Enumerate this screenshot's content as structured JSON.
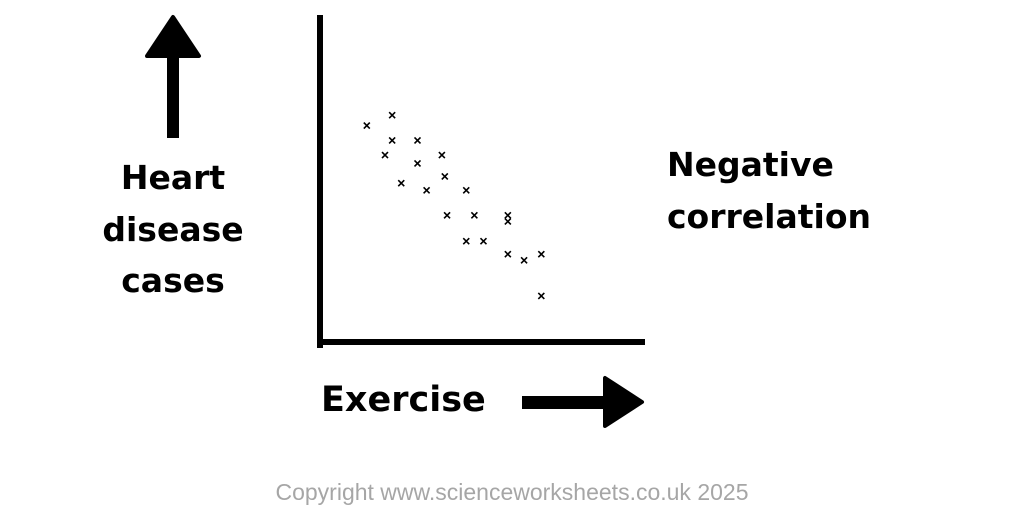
{
  "chart_data": {
    "type": "scatter",
    "xlabel": "Exercise",
    "ylabel_lines": [
      "Heart",
      "disease",
      "cases"
    ],
    "annotation_lines": [
      "Negative",
      "correlation"
    ],
    "xlim": [
      0,
      100
    ],
    "ylim": [
      0,
      100
    ],
    "marker": "x",
    "points": [
      {
        "x": 14.4,
        "y": 66.8
      },
      {
        "x": 22.2,
        "y": 70.0
      },
      {
        "x": 22.2,
        "y": 62.2
      },
      {
        "x": 30.0,
        "y": 62.2
      },
      {
        "x": 20.0,
        "y": 57.7
      },
      {
        "x": 30.0,
        "y": 55.1
      },
      {
        "x": 37.5,
        "y": 57.7
      },
      {
        "x": 38.4,
        "y": 51.1
      },
      {
        "x": 25.0,
        "y": 49.0
      },
      {
        "x": 32.8,
        "y": 46.8
      },
      {
        "x": 45.0,
        "y": 46.8
      },
      {
        "x": 39.1,
        "y": 39.1
      },
      {
        "x": 47.5,
        "y": 39.1
      },
      {
        "x": 57.8,
        "y": 39.1
      },
      {
        "x": 57.8,
        "y": 37.2
      },
      {
        "x": 45.0,
        "y": 31.1
      },
      {
        "x": 50.3,
        "y": 31.1
      },
      {
        "x": 57.8,
        "y": 27.1
      },
      {
        "x": 62.8,
        "y": 25.2
      },
      {
        "x": 68.1,
        "y": 27.1
      },
      {
        "x": 68.1,
        "y": 14.2
      }
    ]
  },
  "footer": {
    "copyright": "Copyright www.scienceworksheets.co.uk 2025",
    "copyright_color": "#a6a6a6"
  },
  "colors": {
    "ink": "#000000",
    "background": "#ffffff"
  }
}
